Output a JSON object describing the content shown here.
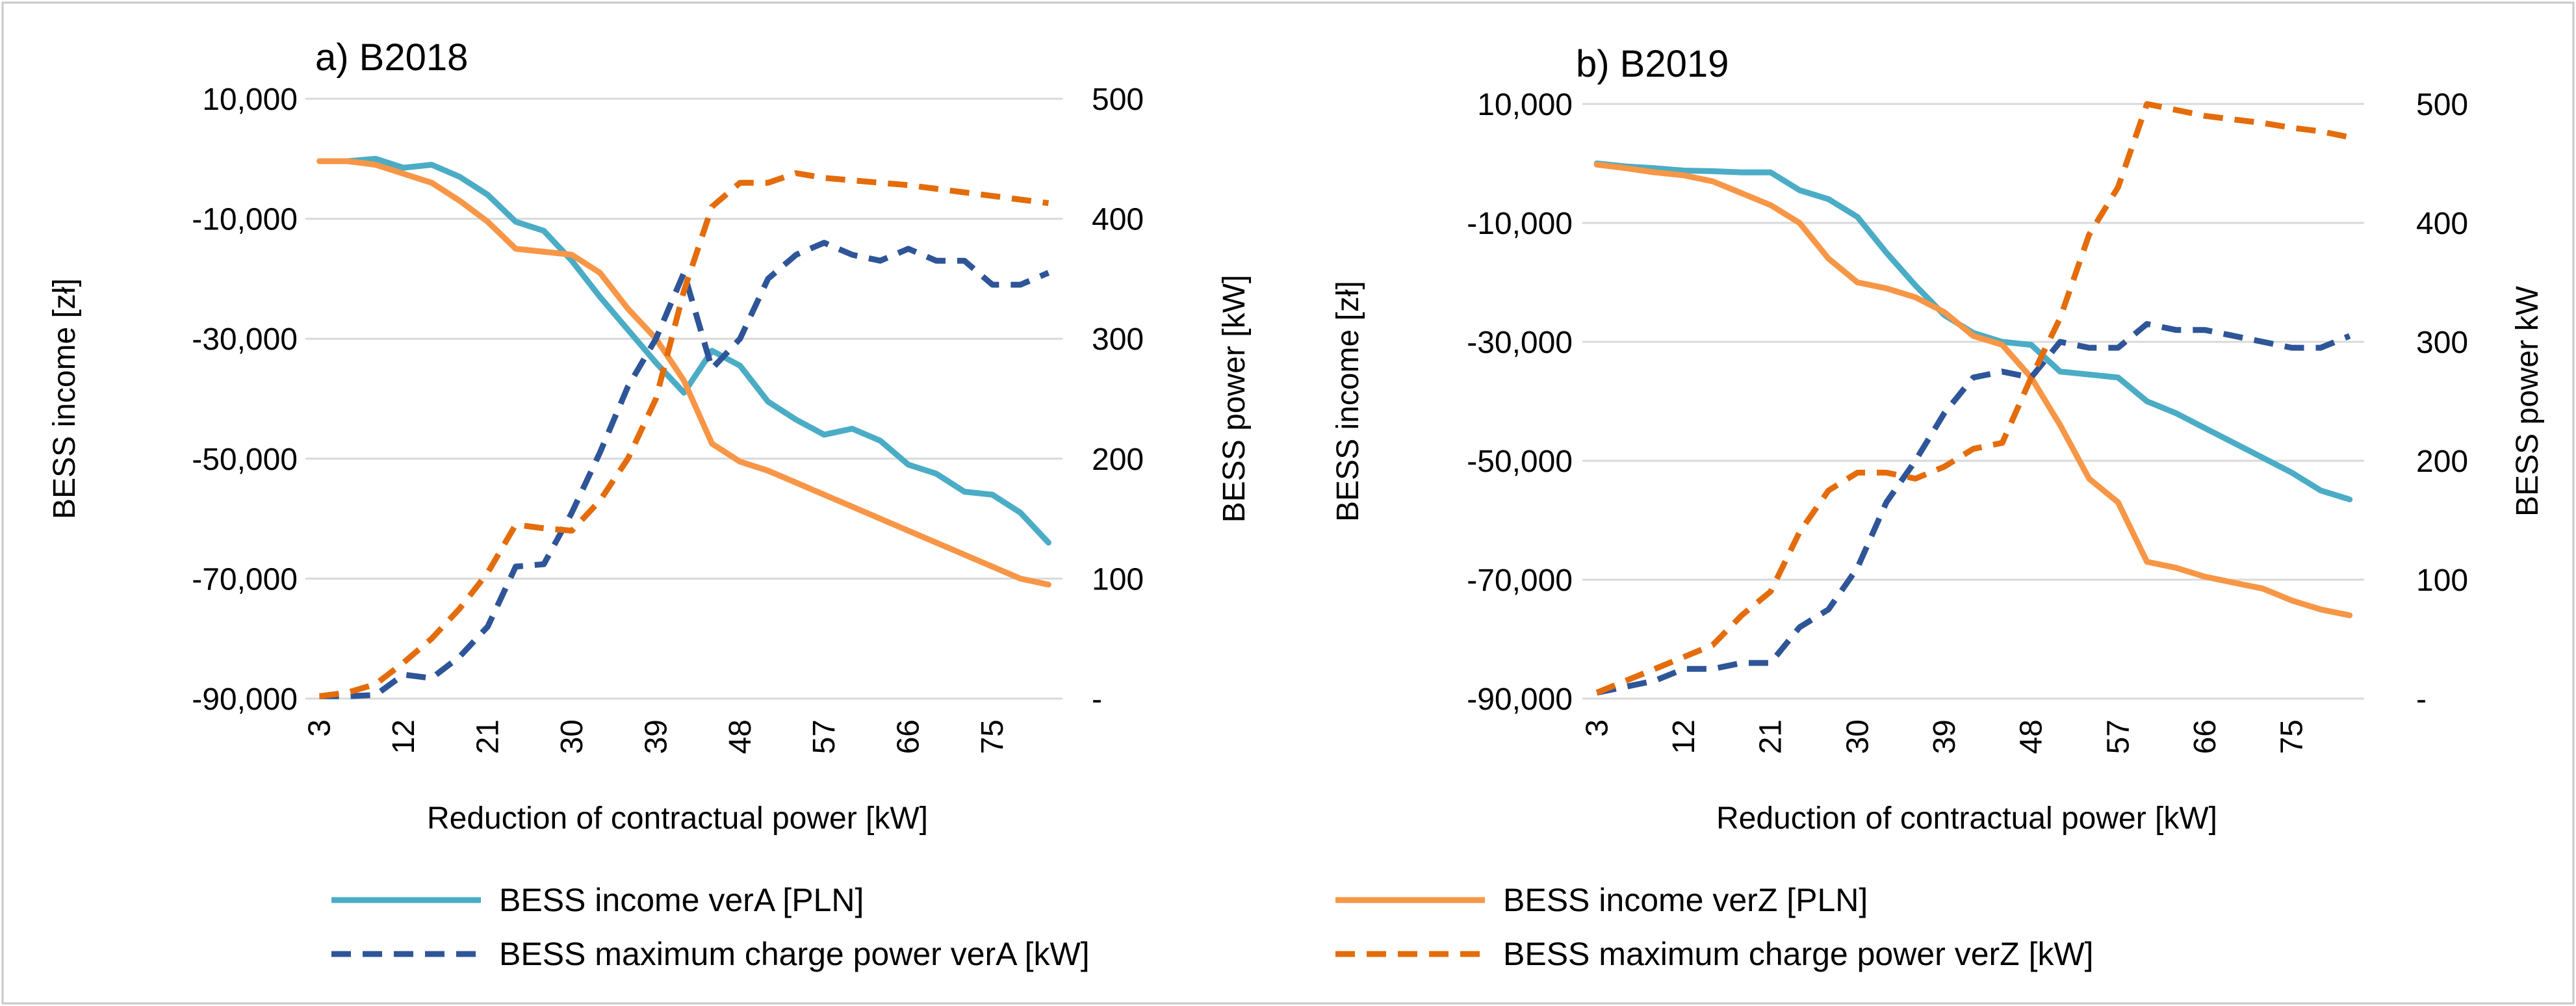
{
  "colors": {
    "verA": "#4BACC6",
    "verZ": "#F79646",
    "verA_charge": "#2E5597",
    "verZ_charge": "#E46C0A",
    "grid": "#D9D9D9",
    "frame": "#C8C8C8"
  },
  "legend": {
    "items": [
      {
        "label": "BESS income verA [PLN]",
        "style": "solid",
        "color_key": "verA"
      },
      {
        "label": "BESS income verZ [PLN]",
        "style": "solid",
        "color_key": "verZ"
      },
      {
        "label": "BESS maximum charge power verA [kW]",
        "style": "dashed",
        "color_key": "verA_charge"
      },
      {
        "label": "BESS maximum charge power verZ [kW]",
        "style": "dashed",
        "color_key": "verZ_charge"
      }
    ]
  },
  "chart_data": [
    {
      "type": "line",
      "title": "a) B2018",
      "xlabel": "Reduction of contractual power [kW]",
      "ylabel": "BESS income [zł]",
      "ylabel_right": "BESS power  [kW]",
      "x": [
        3,
        6,
        9,
        12,
        15,
        18,
        21,
        24,
        27,
        30,
        33,
        36,
        39,
        42,
        45,
        48,
        51,
        54,
        57,
        60,
        63,
        66,
        69,
        72,
        75,
        78,
        81
      ],
      "x_tick_labels": [
        "3",
        "12",
        "21",
        "30",
        "39",
        "48",
        "57",
        "66",
        "75"
      ],
      "ylim": [
        -90000,
        10000
      ],
      "y_tick_labels": [
        "-90,000",
        "-70,000",
        "-50,000",
        "-30,000",
        "-10,000",
        "10,000"
      ],
      "y_ticks": [
        -90000,
        -70000,
        -50000,
        -30000,
        -10000,
        10000
      ],
      "ylim_right": [
        0,
        500
      ],
      "y2_tick_labels": [
        "-",
        "100",
        "200",
        "300",
        "400",
        "500"
      ],
      "y2_ticks": [
        0,
        100,
        200,
        300,
        400,
        500
      ],
      "grid": true,
      "legend_position": "bottom",
      "series": [
        {
          "name": "BESS income verA [PLN]",
          "axis": "left",
          "color_key": "verA",
          "dashed": false,
          "values": [
            -400,
            -400,
            0,
            -1500,
            -1000,
            -3000,
            -6000,
            -10500,
            -12000,
            -17000,
            -23000,
            -28500,
            -34000,
            -39000,
            -32000,
            -34500,
            -40500,
            -43500,
            -46000,
            -45000,
            -47000,
            -51000,
            -52500,
            -55500,
            -56000,
            -59000,
            -64000
          ]
        },
        {
          "name": "BESS income verZ [PLN]",
          "axis": "left",
          "color_key": "verZ",
          "dashed": false,
          "values": [
            -400,
            -400,
            -1000,
            -2500,
            -4000,
            -7000,
            -10500,
            -15000,
            -15500,
            -16000,
            -19000,
            -25000,
            -30000,
            -37000,
            -47500,
            -50500,
            -52000,
            -54000,
            -56000,
            -58000,
            -60000,
            -62000,
            -64000,
            -66000,
            -68000,
            -70000,
            -71000
          ]
        },
        {
          "name": "BESS maximum charge power verA [kW]",
          "axis": "right",
          "color_key": "verA_charge",
          "dashed": true,
          "values": [
            2,
            2,
            3,
            20,
            17,
            35,
            60,
            110,
            112,
            155,
            205,
            260,
            300,
            355,
            275,
            300,
            350,
            370,
            380,
            370,
            365,
            375,
            365,
            365,
            345,
            345,
            355
          ]
        },
        {
          "name": "BESS maximum charge power verZ [kW]",
          "axis": "right",
          "color_key": "verZ_charge",
          "dashed": true,
          "values": [
            2,
            5,
            12,
            30,
            50,
            75,
            105,
            145,
            142,
            140,
            165,
            200,
            250,
            340,
            410,
            430,
            430,
            438,
            434,
            432,
            430,
            428,
            425,
            422,
            419,
            416,
            413
          ]
        }
      ]
    },
    {
      "type": "line",
      "title": "b) B2019",
      "xlabel": "Reduction of contractual power [kW]",
      "ylabel": "BESS income [zł]",
      "ylabel_right": "BESS power  kW",
      "x": [
        3,
        6,
        9,
        12,
        15,
        18,
        21,
        24,
        27,
        30,
        33,
        36,
        39,
        42,
        45,
        48,
        51,
        54,
        57,
        60,
        63,
        66,
        69,
        72,
        75,
        78,
        81
      ],
      "x_tick_labels": [
        "3",
        "12",
        "21",
        "30",
        "39",
        "48",
        "57",
        "66",
        "75"
      ],
      "ylim": [
        -90000,
        10000
      ],
      "y_tick_labels": [
        "-90,000",
        "-70,000",
        "-50,000",
        "-30,000",
        "-10,000",
        "10,000"
      ],
      "y_ticks": [
        -90000,
        -70000,
        -50000,
        -30000,
        -10000,
        10000
      ],
      "ylim_right": [
        0,
        500
      ],
      "y2_tick_labels": [
        "-",
        "100",
        "200",
        "300",
        "400",
        "500"
      ],
      "y2_ticks": [
        0,
        100,
        200,
        300,
        400,
        500
      ],
      "grid": true,
      "legend_position": "bottom",
      "series": [
        {
          "name": "BESS income verA [PLN]",
          "axis": "left",
          "color_key": "verA",
          "dashed": false,
          "values": [
            0,
            -500,
            -800,
            -1200,
            -1300,
            -1500,
            -1500,
            -4500,
            -6000,
            -9000,
            -15000,
            -20500,
            -25500,
            -28500,
            -30000,
            -30500,
            -35000,
            -35500,
            -36000,
            -40000,
            -42000,
            -44500,
            -47000,
            -49500,
            -52000,
            -55000,
            -56500
          ]
        },
        {
          "name": "BESS income verZ [PLN]",
          "axis": "left",
          "color_key": "verZ",
          "dashed": false,
          "values": [
            -200,
            -800,
            -1500,
            -2000,
            -3000,
            -5000,
            -7000,
            -10000,
            -16000,
            -20000,
            -21000,
            -22500,
            -25000,
            -29000,
            -30500,
            -36000,
            -44000,
            -53000,
            -57000,
            -67000,
            -68000,
            -69500,
            -70500,
            -71500,
            -73500,
            -75000,
            -76000
          ]
        },
        {
          "name": "BESS maximum charge power verA [kW]",
          "axis": "right",
          "color_key": "verA_charge",
          "dashed": true,
          "values": [
            5,
            10,
            15,
            25,
            25,
            30,
            30,
            60,
            75,
            110,
            165,
            200,
            240,
            270,
            275,
            270,
            300,
            295,
            295,
            315,
            310,
            310,
            305,
            300,
            295,
            295,
            305
          ]
        },
        {
          "name": "BESS maximum charge power verZ [kW]",
          "axis": "right",
          "color_key": "verZ_charge",
          "dashed": true,
          "values": [
            5,
            15,
            25,
            35,
            45,
            70,
            90,
            140,
            175,
            190,
            190,
            185,
            195,
            210,
            215,
            270,
            320,
            390,
            430,
            500,
            495,
            490,
            487,
            484,
            480,
            477,
            472
          ]
        }
      ]
    }
  ]
}
